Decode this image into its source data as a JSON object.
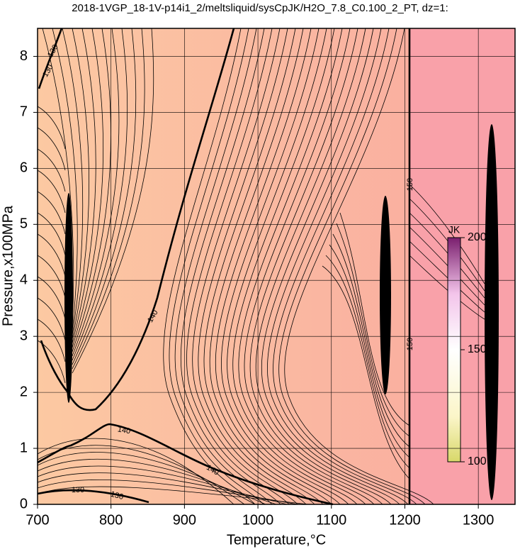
{
  "chart_data": {
    "type": "contour",
    "title": "2018-1VGP_18-1V-p14i1_2/meltsliquid/sysCpJK/H2O_7.8_C0.100_2_PT, dz=1:",
    "x_label": "Temperature,°C",
    "y_label": "Pressure,x100MPa",
    "xlim": [
      700,
      1350
    ],
    "ylim": [
      0,
      8.5
    ],
    "xticks": [
      700,
      800,
      900,
      1000,
      1100,
      1200,
      1300
    ],
    "yticks": [
      0,
      1,
      2,
      3,
      4,
      5,
      6,
      7,
      8
    ],
    "grid": true,
    "contour_labels": [
      "130",
      "130",
      "140",
      "140",
      "140",
      "140",
      "130",
      "130",
      "150",
      "150"
    ],
    "colorbar": {
      "label": "JK",
      "clim": [
        100,
        200
      ],
      "ticks": [
        100,
        150,
        200
      ]
    }
  }
}
